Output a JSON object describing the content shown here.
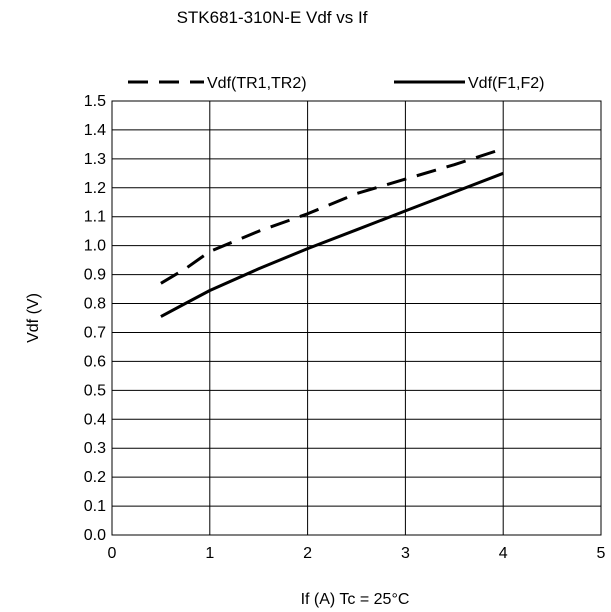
{
  "chart_data": {
    "type": "line",
    "title": "STK681-310N-E Vdf vs If",
    "xlabel": "If (A) Tc = 25°C",
    "ylabel": "Vdf (V)",
    "xlim": [
      0,
      5
    ],
    "ylim": [
      0.0,
      1.5
    ],
    "x_ticks": [
      "0",
      "1",
      "2",
      "3",
      "4",
      "5"
    ],
    "y_ticks": [
      "0.0",
      "0.1",
      "0.2",
      "0.3",
      "0.4",
      "0.5",
      "0.6",
      "0.7",
      "0.8",
      "0.9",
      "1.0",
      "1.1",
      "1.2",
      "1.3",
      "1.4",
      "1.5"
    ],
    "grid": true,
    "legend_position": "top",
    "series": [
      {
        "name": "Vdf(TR1,TR2)",
        "style": "dashed",
        "color": "#000000",
        "x": [
          0.5,
          0.75,
          1.0,
          1.5,
          2.0,
          2.5,
          3.0,
          3.5,
          4.0
        ],
        "y": [
          0.87,
          0.92,
          0.98,
          1.05,
          1.11,
          1.18,
          1.23,
          1.28,
          1.335
        ]
      },
      {
        "name": "Vdf(F1,F2)",
        "style": "solid",
        "color": "#000000",
        "x": [
          0.5,
          0.75,
          1.0,
          1.5,
          2.0,
          2.5,
          3.0,
          3.5,
          4.0
        ],
        "y": [
          0.755,
          0.8,
          0.845,
          0.92,
          0.99,
          1.055,
          1.12,
          1.185,
          1.25
        ]
      }
    ]
  }
}
